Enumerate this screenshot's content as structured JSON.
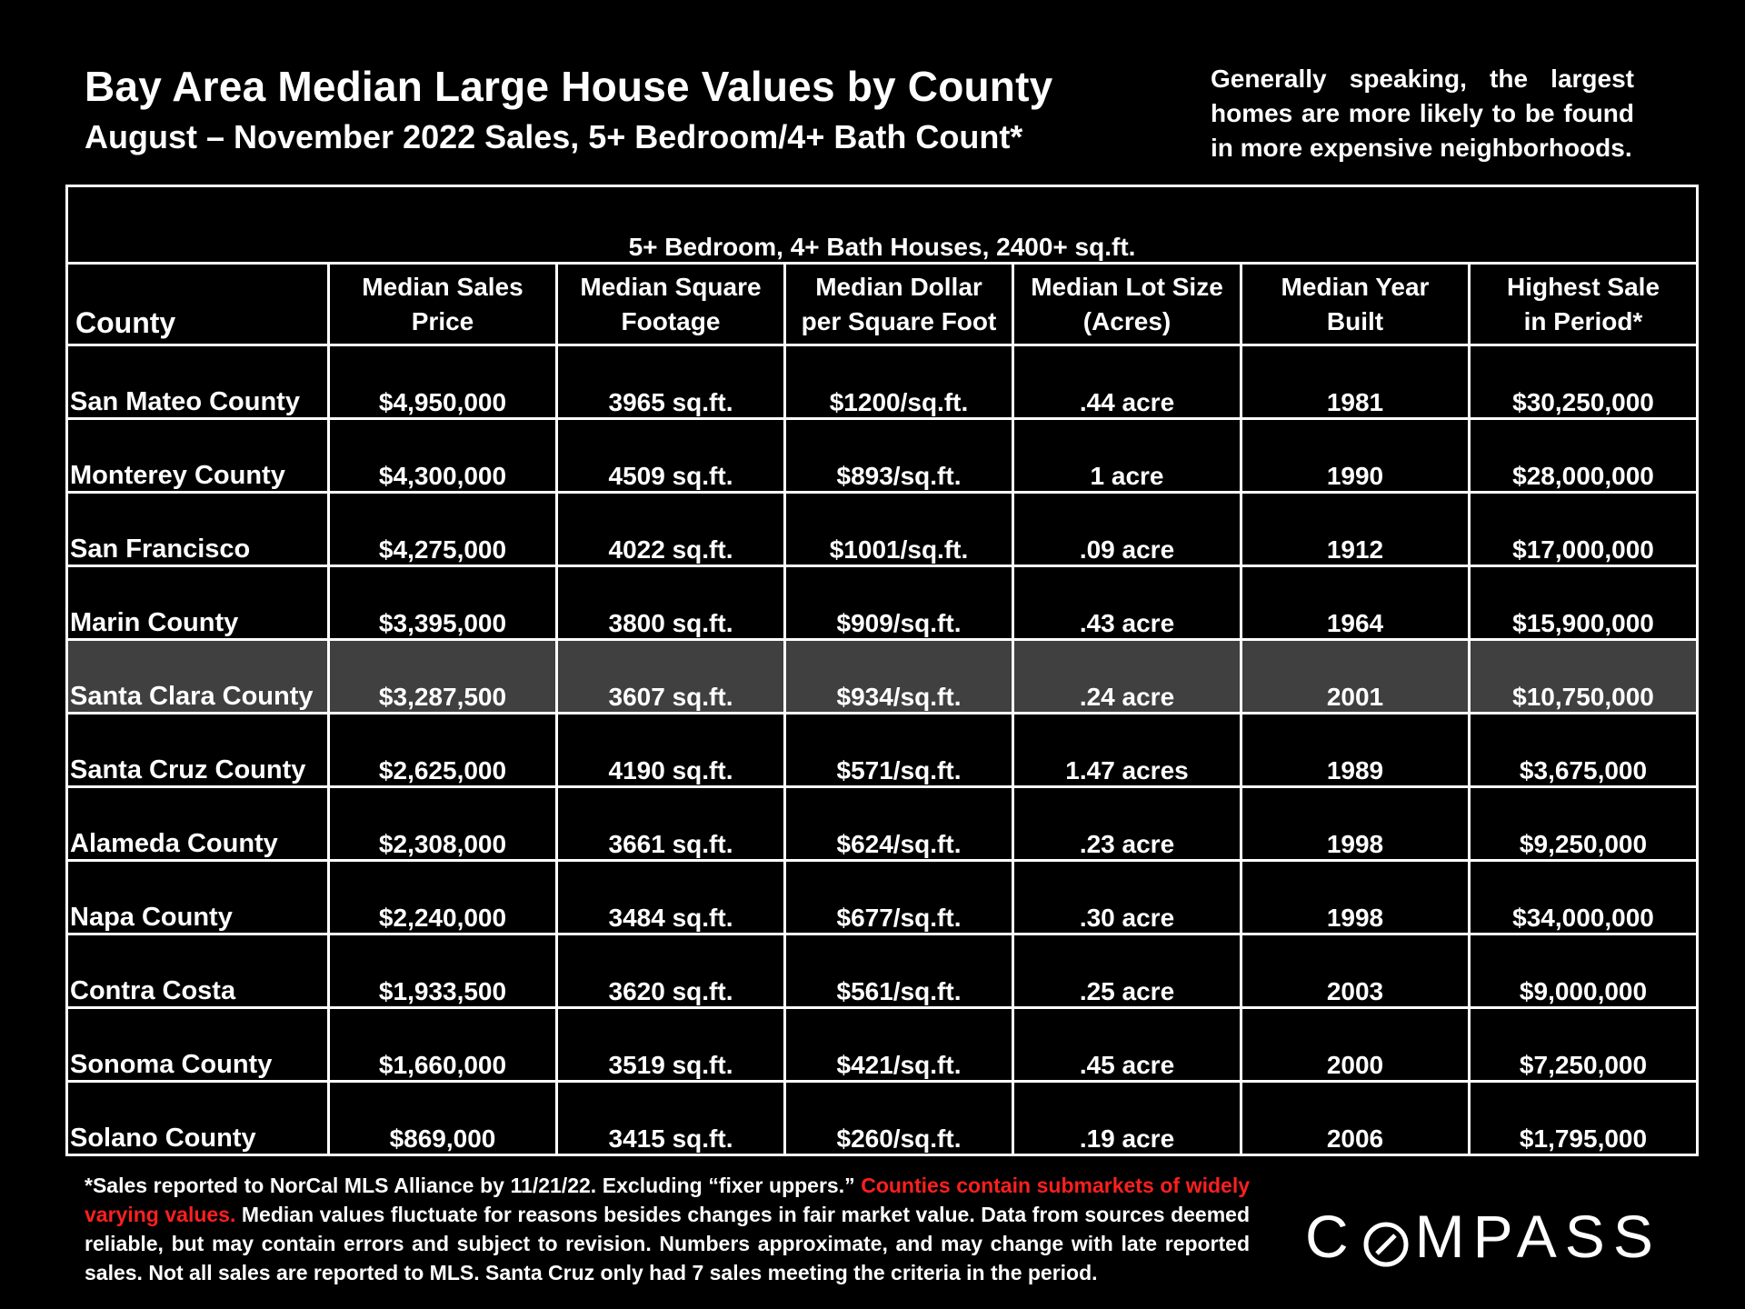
{
  "header": {
    "title": "Bay Area Median Large House Values by County",
    "subtitle": "August – November 2022 Sales, 5+ Bedroom/4+ Bath Count*",
    "note": "Generally speaking, the largest homes are more likely to be found in more expensive neighborhoods."
  },
  "table": {
    "banner": "5+ Bedroom, 4+ Bath Houses, 2400+ sq.ft.",
    "headers": {
      "county": "County",
      "price_1": "Median Sales",
      "price_2": "Price",
      "sqft_1": "Median Square",
      "sqft_2": "Footage",
      "dpsf_1": "Median Dollar",
      "dpsf_2": "per Square Foot",
      "lot_1": "Median Lot Size",
      "lot_2": "(Acres)",
      "year_1": "Median Year",
      "year_2": "Built",
      "high_1": "Highest Sale",
      "high_2": "in Period*"
    },
    "rows": [
      {
        "county": "San Mateo County",
        "price": "$4,950,000",
        "sqft": "3965 sq.ft.",
        "dpsf": "$1200/sq.ft.",
        "lot": ".44 acre",
        "year": "1981",
        "high": "$30,250,000"
      },
      {
        "county": "Monterey County",
        "price": "$4,300,000",
        "sqft": "4509 sq.ft.",
        "dpsf": "$893/sq.ft.",
        "lot": "1 acre",
        "year": "1990",
        "high": "$28,000,000"
      },
      {
        "county": "San Francisco",
        "price": "$4,275,000",
        "sqft": "4022 sq.ft.",
        "dpsf": "$1001/sq.ft.",
        "lot": ".09 acre",
        "year": "1912",
        "high": "$17,000,000"
      },
      {
        "county": "Marin County",
        "price": "$3,395,000",
        "sqft": "3800 sq.ft.",
        "dpsf": "$909/sq.ft.",
        "lot": ".43 acre",
        "year": "1964",
        "high": "$15,900,000"
      },
      {
        "county": "Santa Clara County",
        "price": "$3,287,500",
        "sqft": "3607 sq.ft.",
        "dpsf": "$934/sq.ft.",
        "lot": ".24 acre",
        "year": "2001",
        "high": "$10,750,000"
      },
      {
        "county": "Santa Cruz County",
        "price": "$2,625,000",
        "sqft": "4190 sq.ft.",
        "dpsf": "$571/sq.ft.",
        "lot": "1.47 acres",
        "year": "1989",
        "high": "$3,675,000"
      },
      {
        "county": "Alameda County",
        "price": "$2,308,000",
        "sqft": "3661 sq.ft.",
        "dpsf": "$624/sq.ft.",
        "lot": ".23 acre",
        "year": "1998",
        "high": "$9,250,000"
      },
      {
        "county": "Napa County",
        "price": "$2,240,000",
        "sqft": "3484 sq.ft.",
        "dpsf": "$677/sq.ft.",
        "lot": ".30 acre",
        "year": "1998",
        "high": "$34,000,000"
      },
      {
        "county": "Contra Costa",
        "price": "$1,933,500",
        "sqft": "3620 sq.ft.",
        "dpsf": "$561/sq.ft.",
        "lot": ".25 acre",
        "year": "2003",
        "high": "$9,000,000"
      },
      {
        "county": "Sonoma County",
        "price": "$1,660,000",
        "sqft": "3519 sq.ft.",
        "dpsf": "$421/sq.ft.",
        "lot": ".45 acre",
        "year": "2000",
        "high": "$7,250,000"
      },
      {
        "county": "Solano County",
        "price": "$869,000",
        "sqft": "3415 sq.ft.",
        "dpsf": "$260/sq.ft.",
        "lot": ".19 acre",
        "year": "2006",
        "high": "$1,795,000"
      }
    ],
    "highlight_color": "#404040"
  },
  "footnote": {
    "part1": "*Sales reported to NorCal MLS Alliance by 11/21/22. Excluding “fixer uppers.” ",
    "red_part": "Counties contain submarkets of widely varying values.",
    "part2": " Median values fluctuate for reasons besides changes in fair market value. Data from sources deemed reliable, but may contain errors and subject to revision.  Numbers approximate, and may change with late reported sales. Not all sales are reported to MLS. Santa Cruz only had 7 sales meeting the criteria in the period.",
    "red_color": "#ff1f1f"
  },
  "logo": {
    "left": "C",
    "right": "MPASS",
    "mark_icon": "compass-o-icon"
  }
}
